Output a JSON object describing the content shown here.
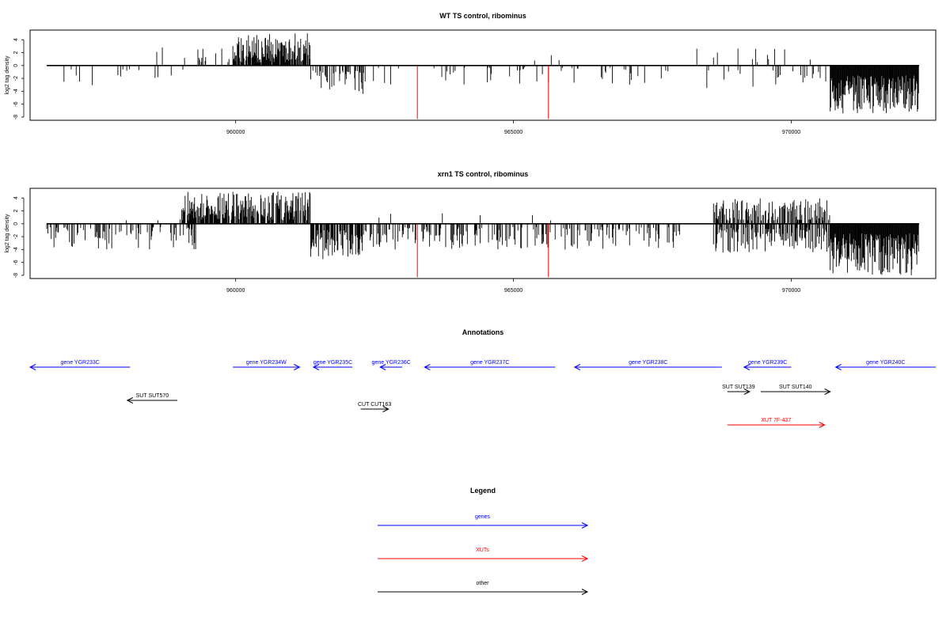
{
  "chart_data": [
    {
      "type": "bar",
      "title": "WT TS control, ribominus",
      "ylabel": "log2 tag density",
      "xlim": [
        956300,
        972600
      ],
      "ylim": [
        -8.5,
        5.5
      ],
      "x_ticks": [
        960000,
        965000,
        970000
      ],
      "y_ticks": [
        4,
        2,
        0,
        -2,
        -4,
        -6,
        -8
      ],
      "series_seed": 11,
      "highlight": {
        "color": "#ff0000",
        "x": [
          963270,
          965630
        ],
        "y": -8.3
      },
      "regions": [
        {
          "from": 956600,
          "to": 959300,
          "sign": -1,
          "density": 0.07,
          "min": 0.5,
          "max": 3.5
        },
        {
          "from": 958500,
          "to": 959200,
          "sign": 1,
          "density": 0.05,
          "min": 0.5,
          "max": 3.0
        },
        {
          "from": 959300,
          "to": 960000,
          "sign": 1,
          "density": 0.12,
          "min": 0.5,
          "max": 3.0
        },
        {
          "from": 959950,
          "to": 961350,
          "sign": 1,
          "density": 0.9,
          "min": 0.5,
          "max": 5.0
        },
        {
          "from": 961350,
          "to": 962300,
          "sign": -1,
          "density": 0.45,
          "min": 0.8,
          "max": 4.5
        },
        {
          "from": 962300,
          "to": 968000,
          "sign": -1,
          "density": 0.1,
          "min": 0.3,
          "max": 3.0
        },
        {
          "from": 963500,
          "to": 967000,
          "sign": 1,
          "density": 0.02,
          "min": 0.5,
          "max": 2.0
        },
        {
          "from": 968200,
          "to": 970600,
          "sign": 1,
          "density": 0.05,
          "min": 0.5,
          "max": 3.0
        },
        {
          "from": 968300,
          "to": 970700,
          "sign": -1,
          "density": 0.12,
          "min": 0.5,
          "max": 3.5
        },
        {
          "from": 970700,
          "to": 972300,
          "sign": -1,
          "density": 1.0,
          "min": 1.5,
          "max": 7.5
        }
      ]
    },
    {
      "type": "bar",
      "title": "xrn1 TS control, ribominus",
      "ylabel": "log2 tag density",
      "xlim": [
        956300,
        972600
      ],
      "ylim": [
        -8.5,
        5.5
      ],
      "x_ticks": [
        960000,
        965000,
        970000
      ],
      "y_ticks": [
        4,
        2,
        0,
        -2,
        -4,
        -6,
        -8
      ],
      "series_seed": 29,
      "highlight": {
        "color": "#ff0000",
        "x": [
          963270,
          965630
        ],
        "y": -8.3
      },
      "regions": [
        {
          "from": 956600,
          "to": 959300,
          "sign": -1,
          "density": 0.3,
          "min": 0.5,
          "max": 4.0
        },
        {
          "from": 958000,
          "to": 959000,
          "sign": 1,
          "density": 0.05,
          "min": 0.5,
          "max": 2.0
        },
        {
          "from": 959000,
          "to": 961350,
          "sign": 1,
          "density": 0.75,
          "min": 0.5,
          "max": 5.0
        },
        {
          "from": 961350,
          "to": 962300,
          "sign": -1,
          "density": 0.75,
          "min": 1.0,
          "max": 5.5
        },
        {
          "from": 962300,
          "to": 968000,
          "sign": -1,
          "density": 0.3,
          "min": 0.5,
          "max": 4.0
        },
        {
          "from": 962500,
          "to": 967500,
          "sign": 1,
          "density": 0.02,
          "min": 0.5,
          "max": 2.0
        },
        {
          "from": 968600,
          "to": 970700,
          "sign": 1,
          "density": 0.55,
          "min": 0.5,
          "max": 4.0
        },
        {
          "from": 968600,
          "to": 970700,
          "sign": -1,
          "density": 0.55,
          "min": 0.5,
          "max": 4.5
        },
        {
          "from": 970700,
          "to": 972300,
          "sign": -1,
          "density": 1.0,
          "min": 1.5,
          "max": 8.0
        }
      ]
    }
  ],
  "annotations": {
    "title": "Annotations",
    "colors": {
      "gene": "#0000ff",
      "xut": "#ff0000",
      "other": "#000000"
    },
    "features": [
      {
        "label": "gene YGR233C",
        "kind": "gene",
        "x_from": 956300,
        "x_to": 958100,
        "row": 0,
        "dir": "left"
      },
      {
        "label": "gene YGR234W",
        "kind": "gene",
        "x_from": 959950,
        "x_to": 961150,
        "row": 0,
        "dir": "right"
      },
      {
        "label": "gene YGR235C",
        "kind": "gene",
        "x_from": 961400,
        "x_to": 962100,
        "row": 0,
        "dir": "left"
      },
      {
        "label": "gene YGR236C",
        "kind": "gene",
        "x_from": 962600,
        "x_to": 963000,
        "row": 0,
        "dir": "left"
      },
      {
        "label": "gene YGR237C",
        "kind": "gene",
        "x_from": 963400,
        "x_to": 965750,
        "row": 0,
        "dir": "left"
      },
      {
        "label": "gene YGR238C",
        "kind": "gene",
        "x_from": 966100,
        "x_to": 968750,
        "row": 0,
        "dir": "left"
      },
      {
        "label": "gene YGR239C",
        "kind": "gene",
        "x_from": 969150,
        "x_to": 970000,
        "row": 0,
        "dir": "left"
      },
      {
        "label": "gene YGR240C",
        "kind": "gene",
        "x_from": 970800,
        "x_to": 972600,
        "row": 0,
        "dir": "left"
      },
      {
        "label": "SUT SUT570",
        "kind": "other",
        "x_from": 958050,
        "x_to": 958950,
        "row": 2,
        "dir": "left"
      },
      {
        "label": "CUT CUT163",
        "kind": "other",
        "x_from": 962250,
        "x_to": 962750,
        "row": 3,
        "dir": "right"
      },
      {
        "label": "SUT SUT139",
        "kind": "other",
        "x_from": 968850,
        "x_to": 969250,
        "row": 1,
        "dir": "right"
      },
      {
        "label": "SUT SUT140",
        "kind": "other",
        "x_from": 969450,
        "x_to": 970700,
        "row": 1,
        "dir": "right"
      },
      {
        "label": "XUT 7F-437",
        "kind": "xut",
        "x_from": 968850,
        "x_to": 970600,
        "row": 4,
        "dir": "right"
      }
    ]
  },
  "legend": {
    "title": "Legend",
    "items": [
      {
        "label": "genes",
        "color": "#0000ff"
      },
      {
        "label": "XUTs",
        "color": "#ff0000"
      },
      {
        "label": "other",
        "color": "#000000"
      }
    ]
  }
}
